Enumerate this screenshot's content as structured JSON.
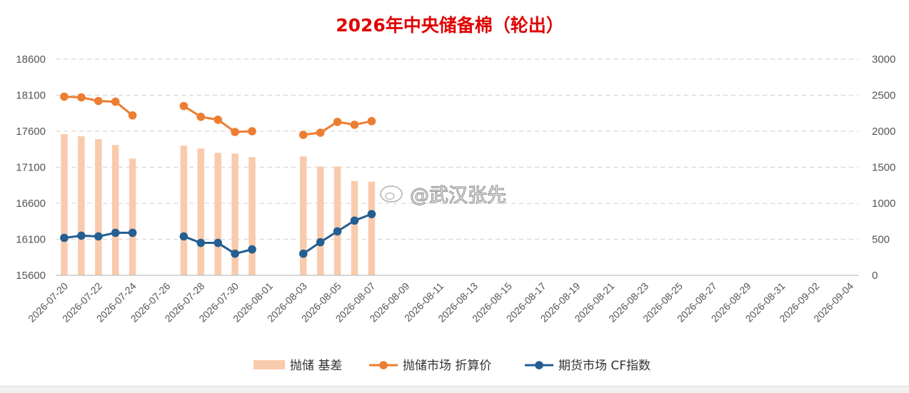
{
  "chart_data": {
    "type": "bar+line",
    "title": "2026年中央储备棉（轮出）",
    "x": [
      "2026-07-20",
      "2026-07-21",
      "2026-07-22",
      "2026-07-23",
      "2026-07-24",
      "2026-07-25",
      "2026-07-26",
      "2026-07-27",
      "2026-07-28",
      "2026-07-29",
      "2026-07-30",
      "2026-07-31",
      "2026-08-01",
      "2026-08-02",
      "2026-08-03",
      "2026-08-04",
      "2026-08-05",
      "2026-08-06",
      "2026-08-07",
      "2026-08-08",
      "2026-08-09",
      "2026-08-10",
      "2026-08-11",
      "2026-08-12",
      "2026-08-13",
      "2026-08-14",
      "2026-08-15",
      "2026-08-16",
      "2026-08-17",
      "2026-08-18",
      "2026-08-19",
      "2026-08-20",
      "2026-08-21",
      "2026-08-22",
      "2026-08-23",
      "2026-08-24",
      "2026-08-25",
      "2026-08-26",
      "2026-08-27",
      "2026-08-28",
      "2026-08-29",
      "2026-08-30",
      "2026-08-31",
      "2026-09-01",
      "2026-09-02",
      "2026-09-03",
      "2026-09-04"
    ],
    "x_tick_labels": [
      "2026-07-20",
      "2026-07-22",
      "2026-07-24",
      "2026-07-26",
      "2026-07-28",
      "2026-07-30",
      "2026-08-01",
      "2026-08-03",
      "2026-08-05",
      "2026-08-07",
      "2026-08-09",
      "2026-08-11",
      "2026-08-13",
      "2026-08-15",
      "2026-08-17",
      "2026-08-19",
      "2026-08-21",
      "2026-08-23",
      "2026-08-25",
      "2026-08-27",
      "2026-08-29",
      "2026-08-31",
      "2026-09-02",
      "2026-09-04"
    ],
    "y_left": {
      "min": 15600,
      "max": 18600,
      "step": 500,
      "ticks": [
        15600,
        16100,
        16600,
        17100,
        17600,
        18100,
        18600
      ]
    },
    "y_right": {
      "min": 0,
      "max": 3000,
      "step": 500,
      "ticks": [
        0,
        500,
        1000,
        1500,
        2000,
        2500,
        3000
      ]
    },
    "grid": true,
    "legend_position": "bottom",
    "series": [
      {
        "name": "抛储 基差",
        "kind": "bar",
        "axis": "right",
        "color": "#f8cbad",
        "values": [
          1960,
          1930,
          1890,
          1810,
          1620,
          null,
          null,
          1800,
          1760,
          1700,
          1690,
          1640,
          null,
          null,
          1650,
          1510,
          1510,
          1310,
          1300,
          null,
          null,
          null,
          null,
          null,
          null,
          null,
          null,
          null,
          null,
          null,
          null,
          null,
          null,
          null,
          null,
          null,
          null,
          null,
          null,
          null,
          null,
          null,
          null,
          null,
          null,
          null,
          null
        ]
      },
      {
        "name": "抛储市场 折算价",
        "kind": "line",
        "axis": "left",
        "color": "#ed7d31",
        "values": [
          18080,
          18070,
          18020,
          18010,
          17820,
          null,
          null,
          17950,
          17800,
          17760,
          17590,
          17600,
          null,
          null,
          17550,
          17580,
          17730,
          17690,
          17740,
          null,
          null,
          null,
          null,
          null,
          null,
          null,
          null,
          null,
          null,
          null,
          null,
          null,
          null,
          null,
          null,
          null,
          null,
          null,
          null,
          null,
          null,
          null,
          null,
          null,
          null,
          null,
          null
        ]
      },
      {
        "name": "期货市场 CF指数",
        "kind": "line",
        "axis": "left",
        "color": "#255e91",
        "values": [
          16120,
          16150,
          16140,
          16190,
          16190,
          null,
          null,
          16140,
          16050,
          16050,
          15900,
          15960,
          null,
          null,
          15900,
          16060,
          16210,
          16360,
          16450,
          null,
          null,
          null,
          null,
          null,
          null,
          null,
          null,
          null,
          null,
          null,
          null,
          null,
          null,
          null,
          null,
          null,
          null,
          null,
          null,
          null,
          null,
          null,
          null,
          null,
          null,
          null,
          null
        ]
      }
    ],
    "watermark": "@武汉张先"
  }
}
